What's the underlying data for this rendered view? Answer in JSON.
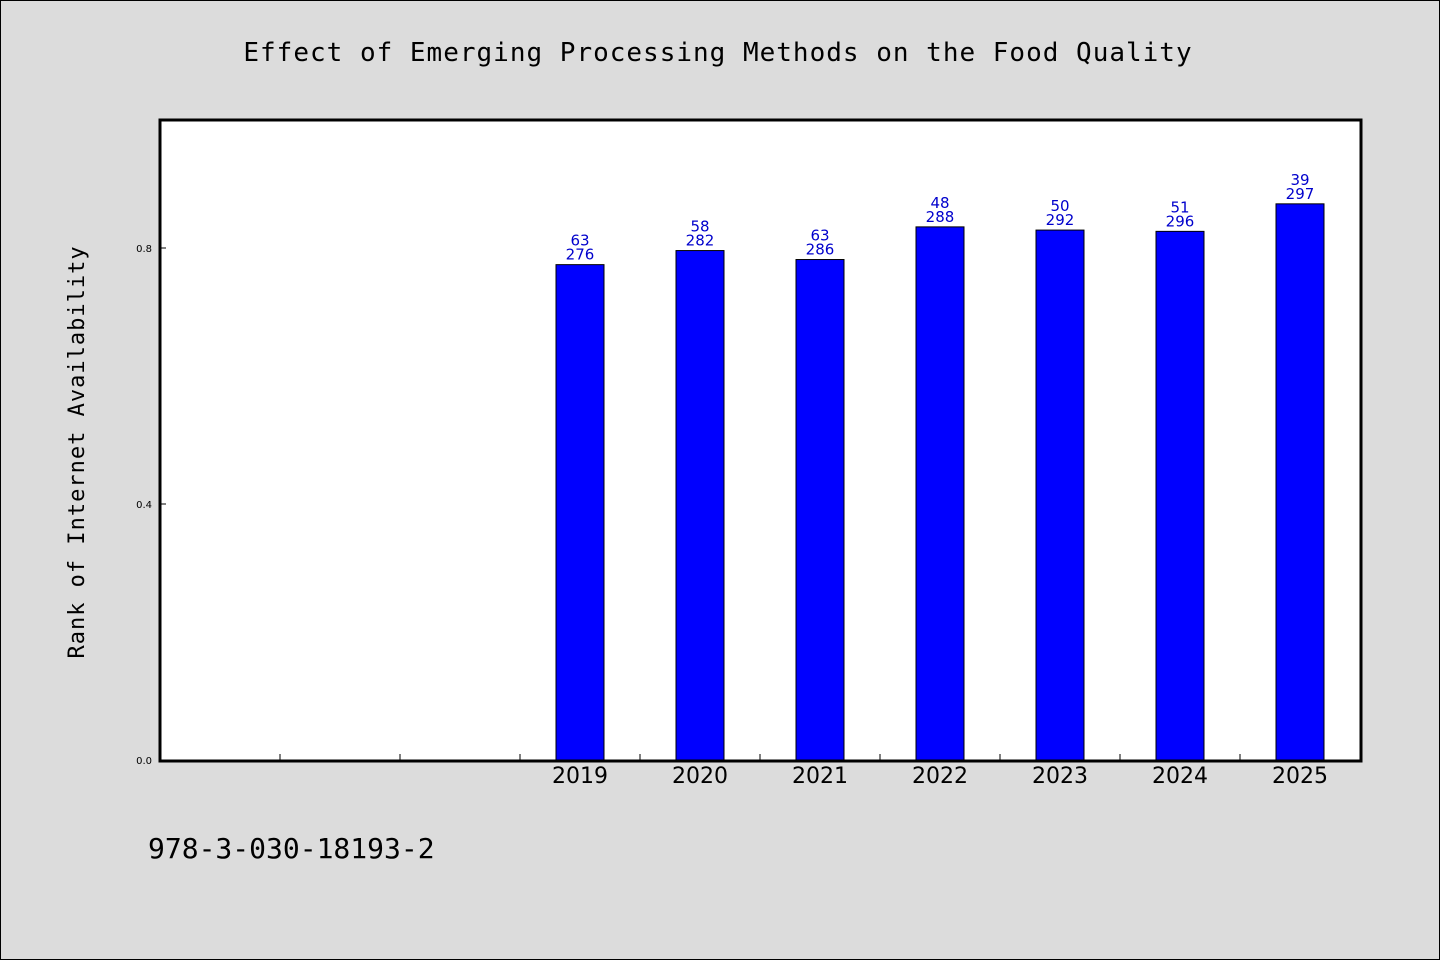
{
  "chart_data": {
    "type": "bar",
    "title": "Effect of Emerging Processing Methods on the Food Quality",
    "xlabel": "",
    "ylabel": "Rank of Internet Availability",
    "ylim": [
      0.0,
      1.0
    ],
    "yticks": [
      "0.0",
      "0.4",
      "0.8"
    ],
    "grid": false,
    "categories": [
      "",
      "",
      "",
      "2019",
      "2020",
      "2021",
      "2022",
      "2023",
      "2024",
      "2025"
    ],
    "values": [
      null,
      null,
      null,
      0.774,
      0.796,
      0.782,
      0.833,
      0.828,
      0.826,
      0.869
    ],
    "labels_top": [
      "",
      "",
      "",
      "63",
      "58",
      "63",
      "48",
      "50",
      "51",
      "39"
    ],
    "labels_bottom": [
      "",
      "",
      "",
      "276",
      "282",
      "286",
      "288",
      "292",
      "296",
      "297"
    ],
    "bar_color": "#0000ff",
    "label_color": "#0000cc"
  },
  "footer": {
    "code": "978-3-030-18193-2"
  },
  "colors": {
    "background": "#dcdcdc",
    "plot_background": "#ffffff"
  }
}
